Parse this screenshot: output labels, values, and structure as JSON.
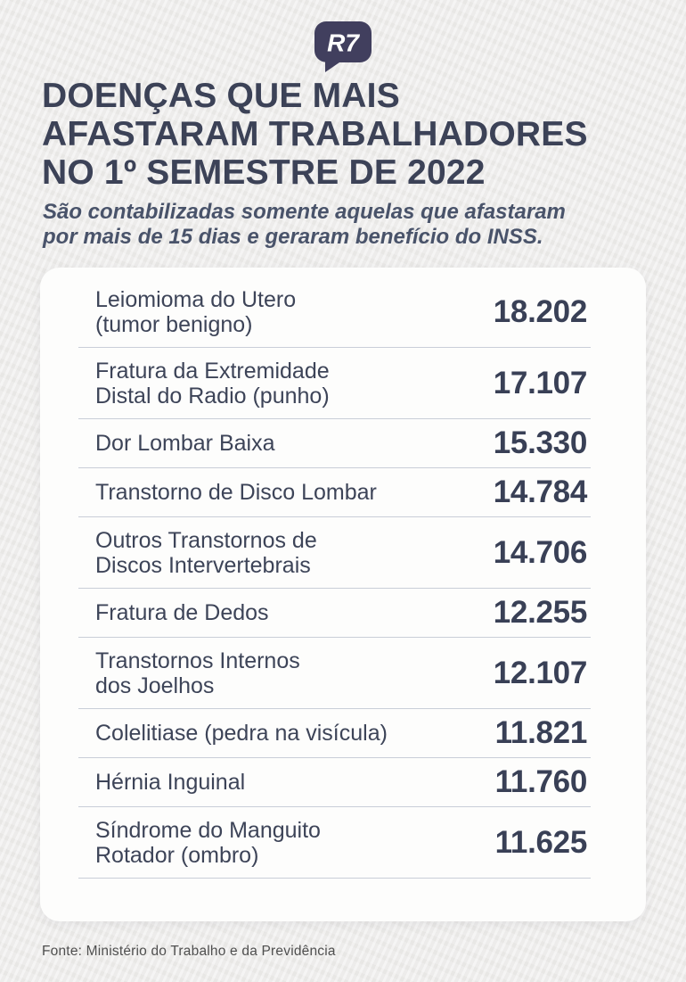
{
  "colors": {
    "page_bg": "#edecea",
    "title": "#3c4257",
    "subtitle": "#49536a",
    "card_bg": "#fdfdfc",
    "divider": "#c9ced8",
    "label": "#3d4458",
    "value": "#394056",
    "footer": "#4f4f4f",
    "logo_bg": "#413f5e",
    "logo_text": "#ffffff"
  },
  "logo": {
    "text": "R7"
  },
  "header": {
    "title_line1": "DOENÇAS QUE MAIS",
    "title_line2": "AFASTARAM TRABALHADORES",
    "title_line3": "NO 1º SEMESTRE DE 2022",
    "subtitle_line1": "São contabilizadas somente aquelas que afastaram",
    "subtitle_line2": "por mais de 15 dias e geraram benefício do INSS."
  },
  "table": {
    "rows": [
      {
        "label_lines": [
          "Leiomioma do Utero",
          "(tumor benigno)"
        ],
        "value": "18.202"
      },
      {
        "label_lines": [
          "Fratura da Extremidade",
          "Distal do Radio (punho)"
        ],
        "value": "17.107"
      },
      {
        "label_lines": [
          "Dor Lombar Baixa"
        ],
        "value": "15.330"
      },
      {
        "label_lines": [
          "Transtorno de Disco Lombar"
        ],
        "value": "14.784"
      },
      {
        "label_lines": [
          "Outros Transtornos de",
          "Discos Intervertebrais"
        ],
        "value": "14.706"
      },
      {
        "label_lines": [
          "Fratura de Dedos"
        ],
        "value": "12.255"
      },
      {
        "label_lines": [
          "Transtornos Internos",
          "dos Joelhos"
        ],
        "value": "12.107"
      },
      {
        "label_lines": [
          "Colelitiase (pedra na visícula)"
        ],
        "value": "11.821"
      },
      {
        "label_lines": [
          "Hérnia Inguinal"
        ],
        "value": "11.760"
      },
      {
        "label_lines": [
          "Síndrome do Manguito",
          "Rotador (ombro)"
        ],
        "value": "11.625"
      }
    ]
  },
  "footer": {
    "source": "Fonte: Ministério do Trabalho e da Previdência"
  },
  "chart_data": {
    "type": "table",
    "title": "DOENÇAS QUE MAIS AFASTARAM TRABALHADORES NO 1º SEMESTRE DE 2022",
    "subtitle": "São contabilizadas somente aquelas que afastaram por mais de 15 dias e geraram benefício do INSS.",
    "categories": [
      "Leiomioma do Utero (tumor benigno)",
      "Fratura da Extremidade Distal do Radio (punho)",
      "Dor Lombar Baixa",
      "Transtorno de Disco Lombar",
      "Outros Transtornos de Discos Intervertebrais",
      "Fratura de Dedos",
      "Transtornos Internos dos Joelhos",
      "Colelitiase (pedra na visícula)",
      "Hérnia Inguinal",
      "Síndrome do Manguito Rotador (ombro)"
    ],
    "values": [
      18202,
      17107,
      15330,
      14784,
      14706,
      12255,
      12107,
      11821,
      11760,
      11625
    ],
    "values_display": [
      "18.202",
      "17.107",
      "15.330",
      "14.784",
      "14.706",
      "12.255",
      "12.107",
      "11.821",
      "11.760",
      "11.625"
    ],
    "source": "Fonte: Ministério do Trabalho e da Previdência"
  }
}
